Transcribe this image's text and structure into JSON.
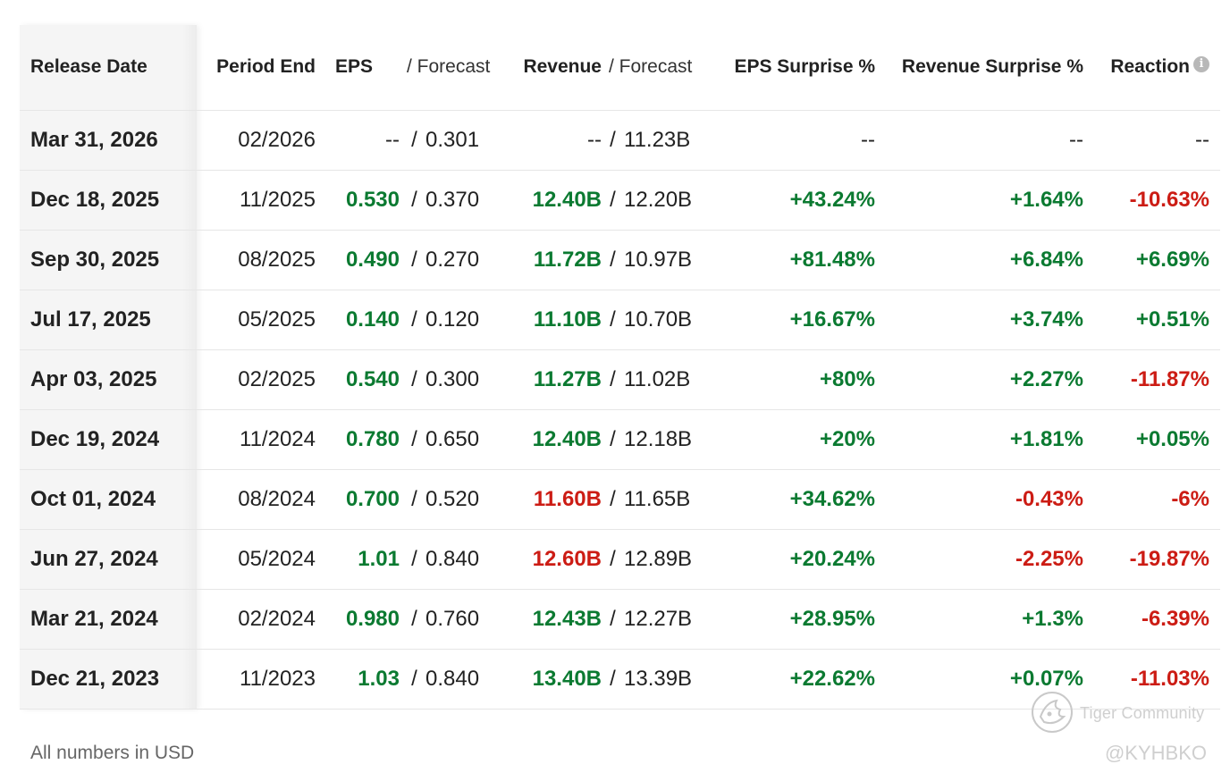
{
  "table": {
    "headers": {
      "release_date": "Release Date",
      "period_end": "Period End",
      "eps": "EPS",
      "eps_forecast": "/ Forecast",
      "revenue": "Revenue",
      "revenue_forecast": "/ Forecast",
      "eps_surprise": "EPS Surprise %",
      "revenue_surprise": "Revenue Surprise %",
      "reaction": "Reaction",
      "reaction_icon": "info-icon"
    },
    "rows": [
      {
        "release_date": "Mar 31, 2026",
        "period_end": "02/2026",
        "eps": "--",
        "eps_forecast": "0.301",
        "revenue": "--",
        "revenue_forecast": "11.23B",
        "eps_surprise": "--",
        "revenue_surprise": "--",
        "reaction": "--"
      },
      {
        "release_date": "Dec 18, 2025",
        "period_end": "11/2025",
        "eps": "0.530",
        "eps_forecast": "0.370",
        "revenue": "12.40B",
        "revenue_forecast": "12.20B",
        "eps_surprise": "+43.24%",
        "revenue_surprise": "+1.64%",
        "reaction": "-10.63%"
      },
      {
        "release_date": "Sep 30, 2025",
        "period_end": "08/2025",
        "eps": "0.490",
        "eps_forecast": "0.270",
        "revenue": "11.72B",
        "revenue_forecast": "10.97B",
        "eps_surprise": "+81.48%",
        "revenue_surprise": "+6.84%",
        "reaction": "+6.69%"
      },
      {
        "release_date": "Jul 17, 2025",
        "period_end": "05/2025",
        "eps": "0.140",
        "eps_forecast": "0.120",
        "revenue": "11.10B",
        "revenue_forecast": "10.70B",
        "eps_surprise": "+16.67%",
        "revenue_surprise": "+3.74%",
        "reaction": "+0.51%"
      },
      {
        "release_date": "Apr 03, 2025",
        "period_end": "02/2025",
        "eps": "0.540",
        "eps_forecast": "0.300",
        "revenue": "11.27B",
        "revenue_forecast": "11.02B",
        "eps_surprise": "+80%",
        "revenue_surprise": "+2.27%",
        "reaction": "-11.87%"
      },
      {
        "release_date": "Dec 19, 2024",
        "period_end": "11/2024",
        "eps": "0.780",
        "eps_forecast": "0.650",
        "revenue": "12.40B",
        "revenue_forecast": "12.18B",
        "eps_surprise": "+20%",
        "revenue_surprise": "+1.81%",
        "reaction": "+0.05%"
      },
      {
        "release_date": "Oct 01, 2024",
        "period_end": "08/2024",
        "eps": "0.700",
        "eps_forecast": "0.520",
        "revenue": "11.60B",
        "revenue_forecast": "11.65B",
        "eps_surprise": "+34.62%",
        "revenue_surprise": "-0.43%",
        "reaction": "-6%"
      },
      {
        "release_date": "Jun 27, 2024",
        "period_end": "05/2024",
        "eps": "1.01",
        "eps_forecast": "0.840",
        "revenue": "12.60B",
        "revenue_forecast": "12.89B",
        "eps_surprise": "+20.24%",
        "revenue_surprise": "-2.25%",
        "reaction": "-19.87%"
      },
      {
        "release_date": "Mar 21, 2024",
        "period_end": "02/2024",
        "eps": "0.980",
        "eps_forecast": "0.760",
        "revenue": "12.43B",
        "revenue_forecast": "12.27B",
        "eps_surprise": "+28.95%",
        "revenue_surprise": "+1.3%",
        "reaction": "-6.39%"
      },
      {
        "release_date": "Dec 21, 2023",
        "period_end": "11/2023",
        "eps": "1.03",
        "eps_forecast": "0.840",
        "revenue": "13.40B",
        "revenue_forecast": "13.39B",
        "eps_surprise": "+22.62%",
        "revenue_surprise": "+0.07%",
        "reaction": "-11.03%"
      }
    ],
    "separator": "/"
  },
  "footnote": "All numbers in USD",
  "watermark": {
    "brand": "Tiger Community",
    "handle": "@KYHBKO",
    "logo_icon": "tiger-logo-icon"
  },
  "colors": {
    "positive": "#0b7a31",
    "negative": "#cc1c14",
    "neutral": "#222222"
  }
}
